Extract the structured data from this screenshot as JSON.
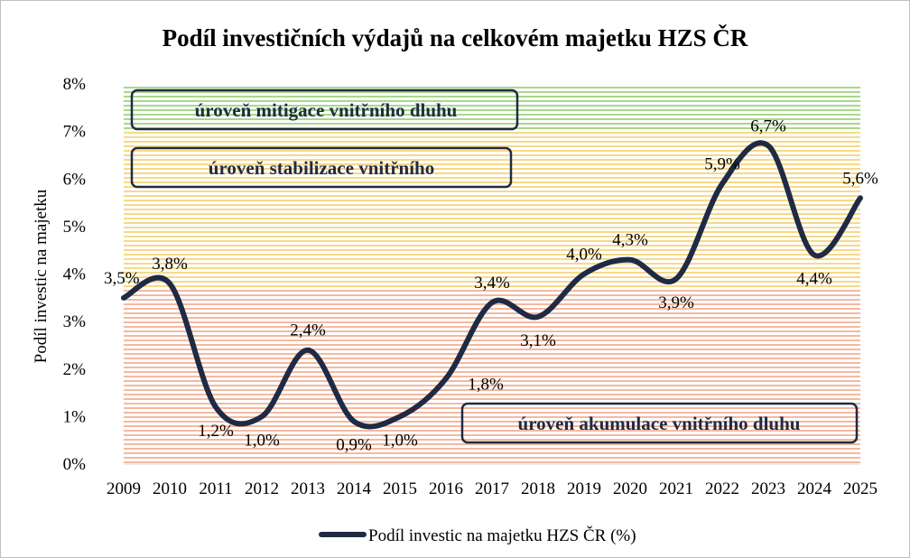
{
  "chart_data": {
    "type": "line",
    "title": "Podíl investičních výdajů na celkovém majetku HZS ČR",
    "xlabel": "",
    "ylabel": "Podíl investic na majetku",
    "categories": [
      "2009",
      "2010",
      "2011",
      "2012",
      "2013",
      "2014",
      "2015",
      "2016",
      "2017",
      "2018",
      "2019",
      "2020",
      "2021",
      "2022",
      "2023",
      "2024",
      "2025"
    ],
    "series": [
      {
        "name": "Podíl investic na majetku HZS ČR (%)",
        "values": [
          3.5,
          3.8,
          1.2,
          1.0,
          2.4,
          0.9,
          1.0,
          1.8,
          3.4,
          3.1,
          4.0,
          4.3,
          3.9,
          5.9,
          6.7,
          4.4,
          5.6
        ],
        "color": "#1f2a44"
      }
    ],
    "data_labels": [
      "3,5%",
      "3,8%",
      "1,2%",
      "1,0%",
      "2,4%",
      "0,9%",
      "1,0%",
      "1,8%",
      "3,4%",
      "3,1%",
      "4,0%",
      "4,3%",
      "3,9%",
      "5,9%",
      "6,7%",
      "4,4%",
      "5,6%"
    ],
    "y_ticks": [
      0,
      1,
      2,
      3,
      4,
      5,
      6,
      7,
      8
    ],
    "y_tick_labels": [
      "0%",
      "1%",
      "2%",
      "3%",
      "4%",
      "5%",
      "6%",
      "7%",
      "8%"
    ],
    "ylim": [
      0,
      8
    ],
    "grid": false,
    "legend_position": "bottom",
    "zones": [
      {
        "label": "úroveň mitigace vnitřního dluhu",
        "from": 7.0,
        "to": 8.0,
        "color": "#92d050"
      },
      {
        "label": "úroveň stabilizace vnitřního",
        "from": 3.7,
        "to": 7.0,
        "color": "#ffd966"
      },
      {
        "label": "úroveň akumulace vnitřního dluhu",
        "from": 0.0,
        "to": 3.7,
        "color": "#f4b183"
      }
    ]
  }
}
